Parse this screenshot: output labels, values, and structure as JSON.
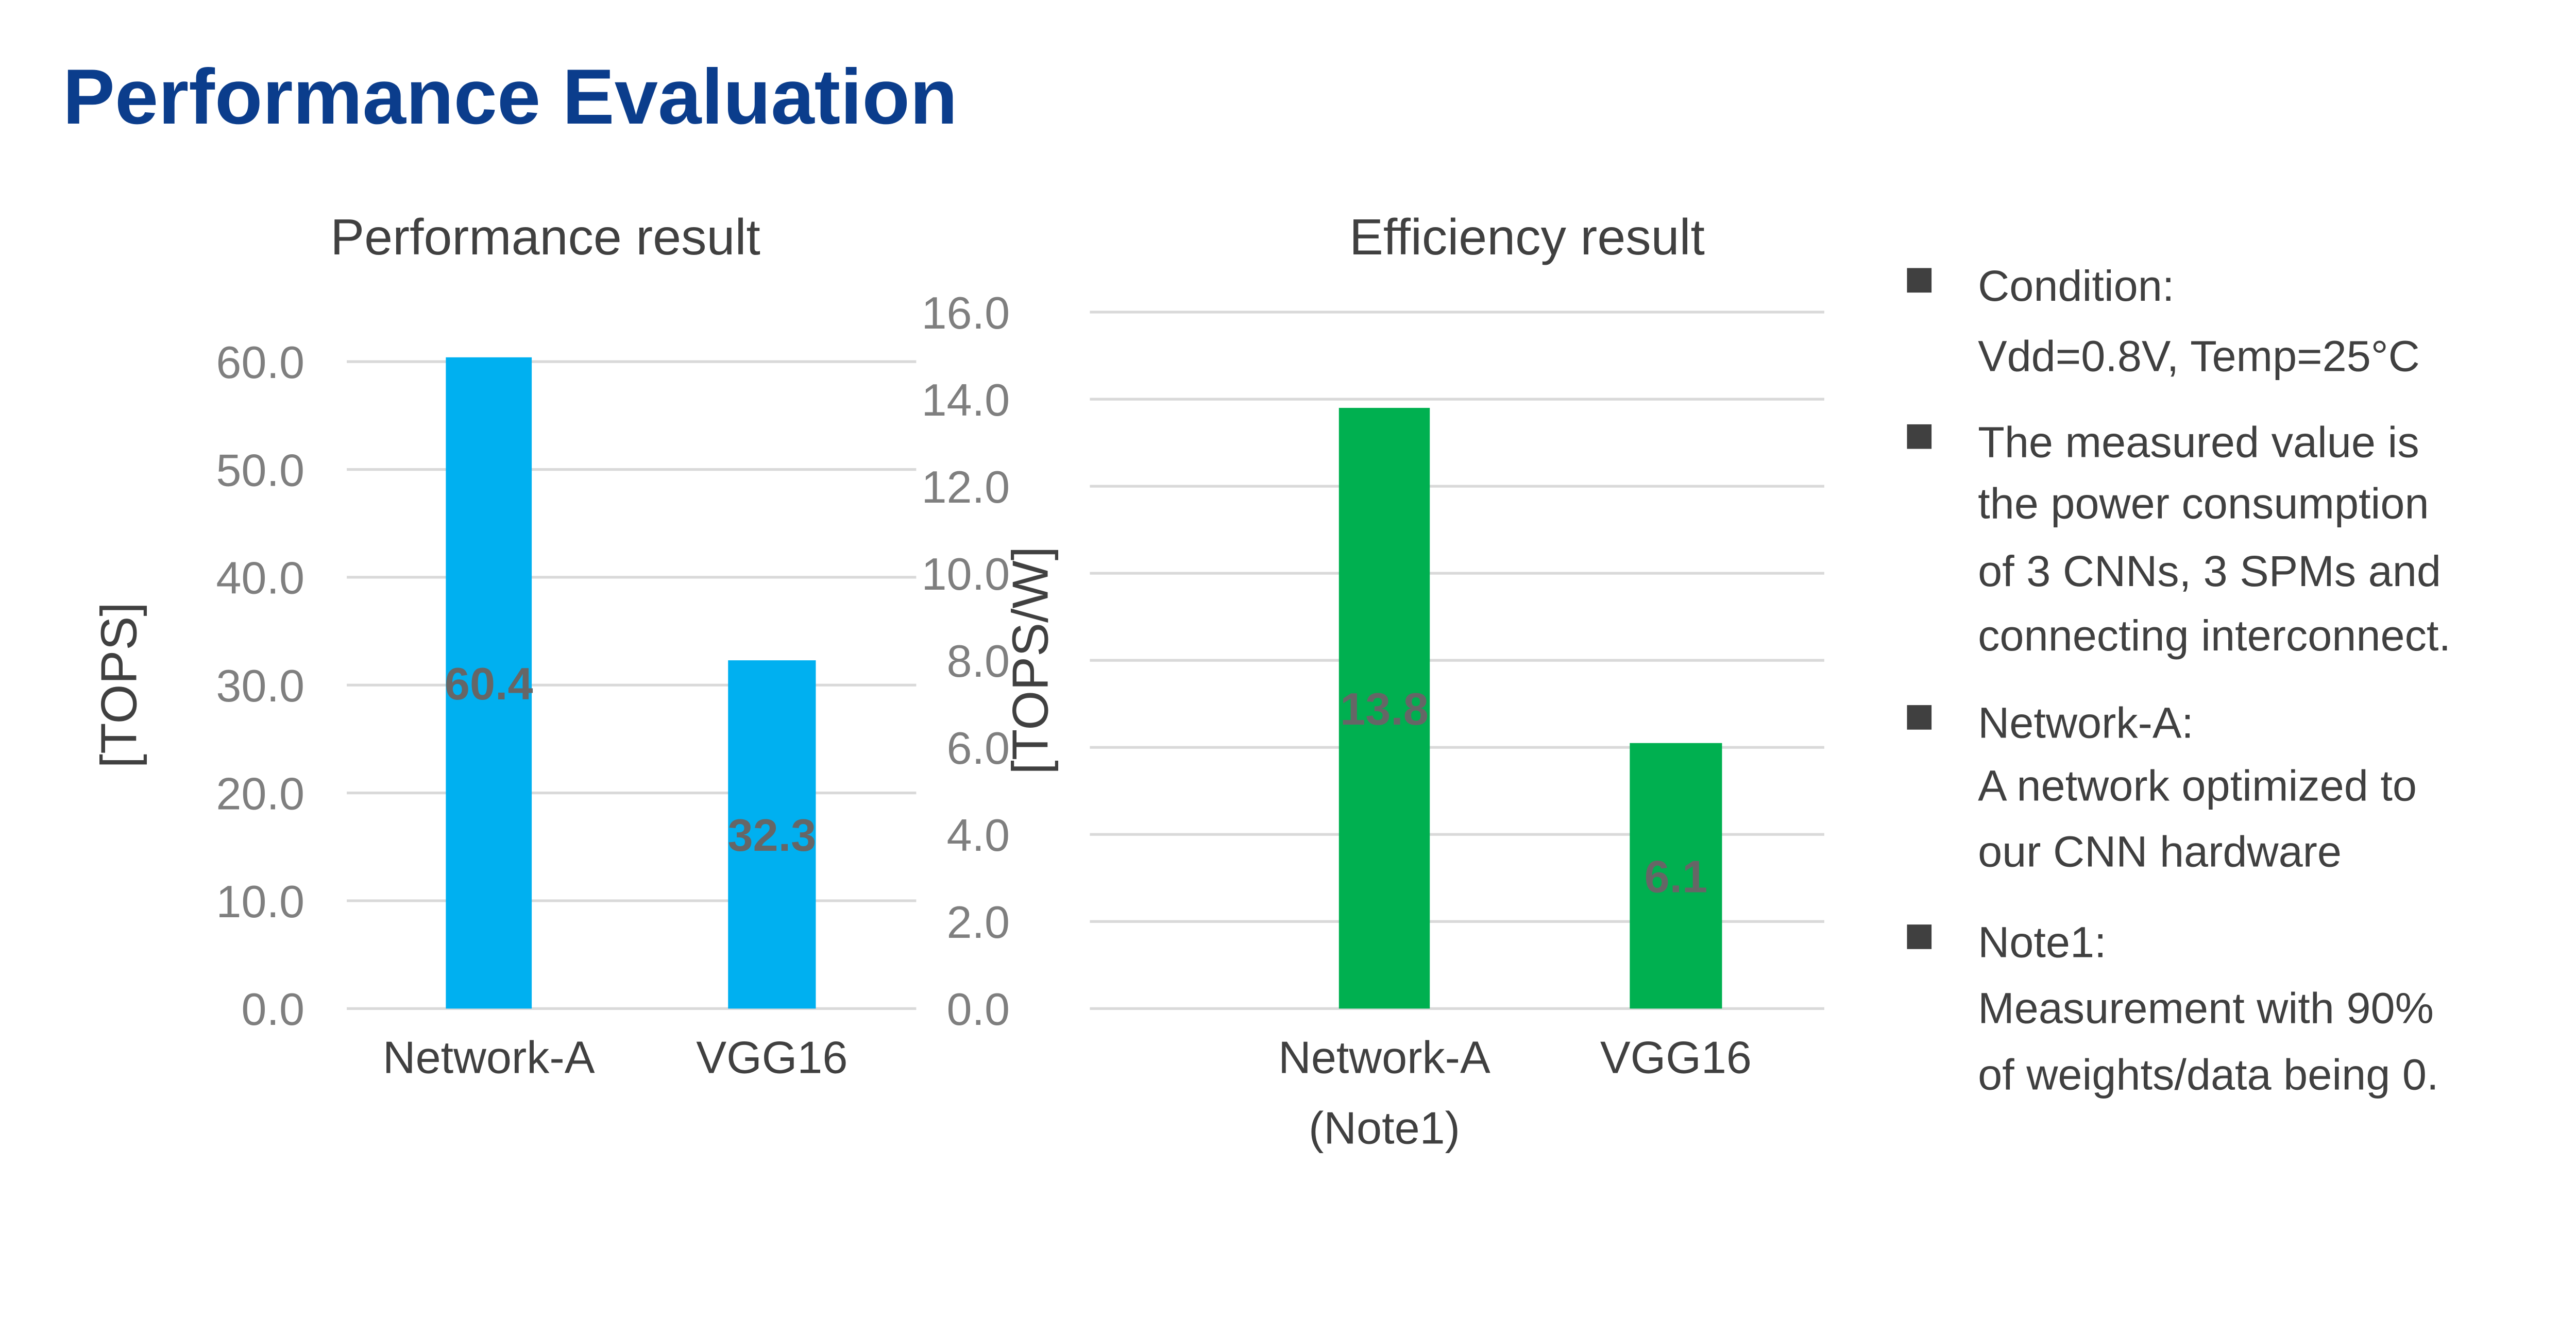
{
  "slide_title": "Performance Evaluation",
  "chart_data": [
    {
      "type": "bar",
      "title": "Performance result",
      "ylabel": "[TOPS]",
      "xlabel": "",
      "categories": [
        [
          "Network-A"
        ],
        [
          "VGG16"
        ]
      ],
      "values": [
        60.4,
        32.3
      ],
      "data_labels": [
        "60.4",
        "32.3"
      ],
      "ylim": [
        0,
        60
      ],
      "yticks": [
        "0.0",
        "10.0",
        "20.0",
        "30.0",
        "40.0",
        "50.0",
        "60.0"
      ],
      "ytick_values": [
        0,
        10,
        20,
        30,
        40,
        50,
        60
      ],
      "grid": true,
      "color": "#00b0f0"
    },
    {
      "type": "bar",
      "title": "Efficiency result",
      "ylabel": "[TOPS/W]",
      "xlabel": "",
      "categories": [
        [
          "Network-A",
          "(Note1)"
        ],
        [
          "VGG16"
        ]
      ],
      "values": [
        13.8,
        6.1
      ],
      "data_labels": [
        "13.8",
        "6.1"
      ],
      "ylim": [
        0,
        16
      ],
      "yticks": [
        "0.0",
        "2.0",
        "4.0",
        "6.0",
        "8.0",
        "10.0",
        "12.0",
        "14.0",
        "16.0"
      ],
      "ytick_values": [
        0,
        2,
        4,
        6,
        8,
        10,
        12,
        14,
        16
      ],
      "grid": true,
      "color": "#00b050"
    }
  ],
  "notes": [
    {
      "lines": [
        "Condition:",
        "Vdd=0.8V, Temp=25°C"
      ]
    },
    {
      "lines": [
        "The measured value is",
        "the power consumption",
        "of 3 CNNs, 3 SPMs and",
        "connecting interconnect."
      ]
    },
    {
      "lines": [
        "Network-A:",
        "A network optimized to",
        "our CNN hardware"
      ]
    },
    {
      "lines": [
        "Note1:",
        "Measurement with 90%",
        "of weights/data being 0."
      ]
    }
  ],
  "bullet_color": "#404040"
}
